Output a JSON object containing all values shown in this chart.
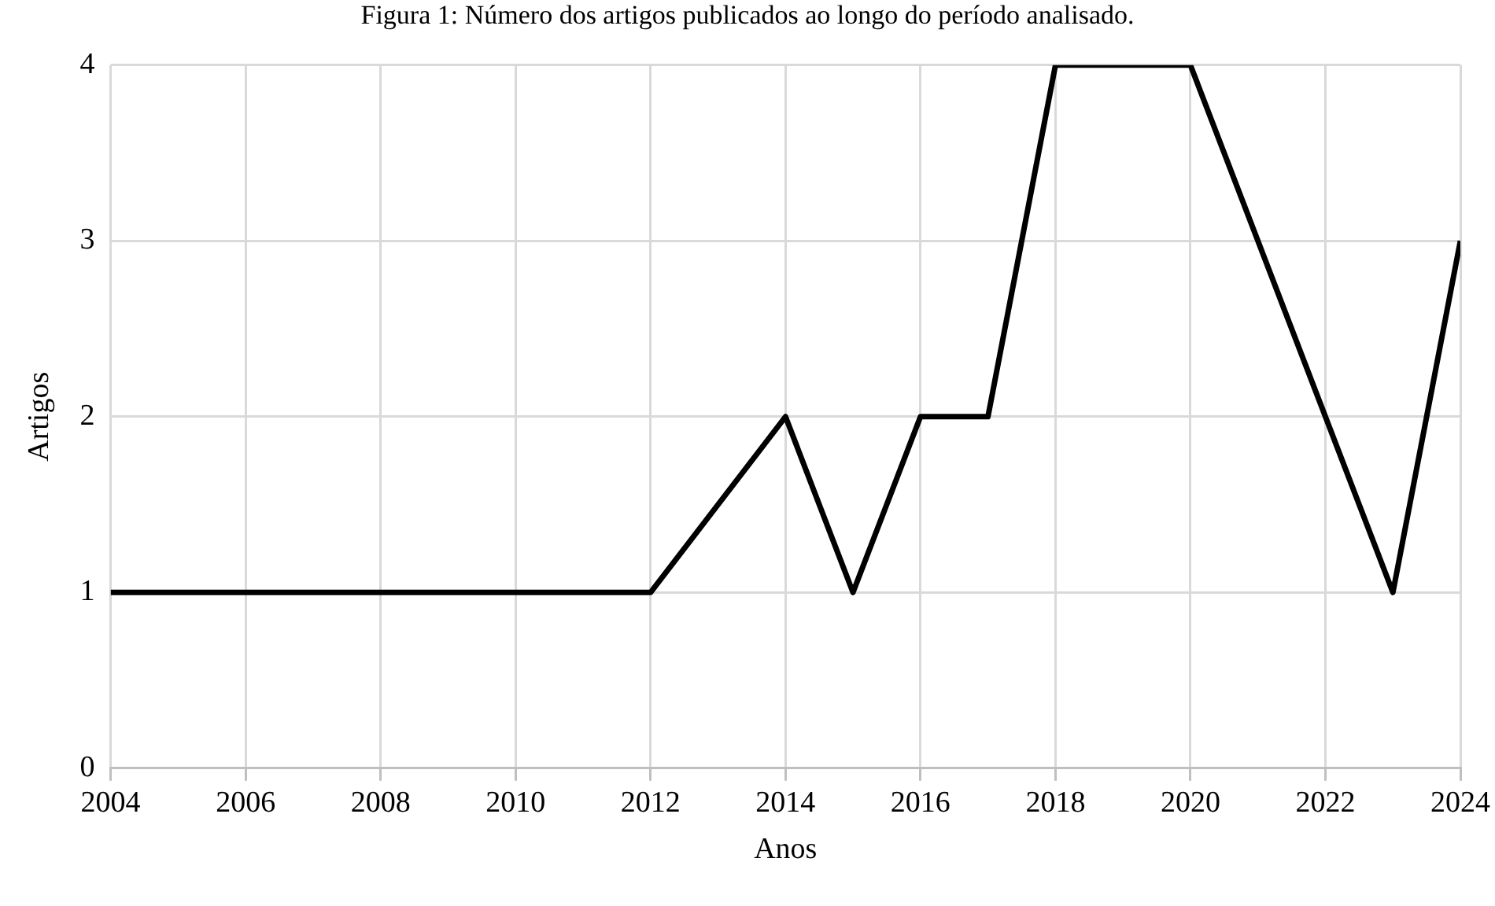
{
  "chart_data": {
    "type": "line",
    "title": "Figura 1: Número dos artigos publicados ao longo do período analisado.",
    "xlabel": "Anos",
    "ylabel": "Artigos",
    "x": [
      2004,
      2012,
      2014,
      2015,
      2016,
      2017,
      2018,
      2020,
      2023,
      2024
    ],
    "series": [
      {
        "color": "#000000",
        "values": [
          1,
          1,
          2,
          1,
          2,
          2,
          4,
          4,
          1,
          3
        ]
      }
    ],
    "xlim": [
      2004,
      2024
    ],
    "xticks": [
      2004,
      2006,
      2008,
      2010,
      2012,
      2014,
      2016,
      2018,
      2020,
      2022,
      2024
    ],
    "ylim": [
      0,
      4
    ],
    "yticks": [
      0,
      1,
      2,
      3,
      4
    ],
    "grid": true,
    "legend": false,
    "marker": "none",
    "line_style": "solid"
  }
}
